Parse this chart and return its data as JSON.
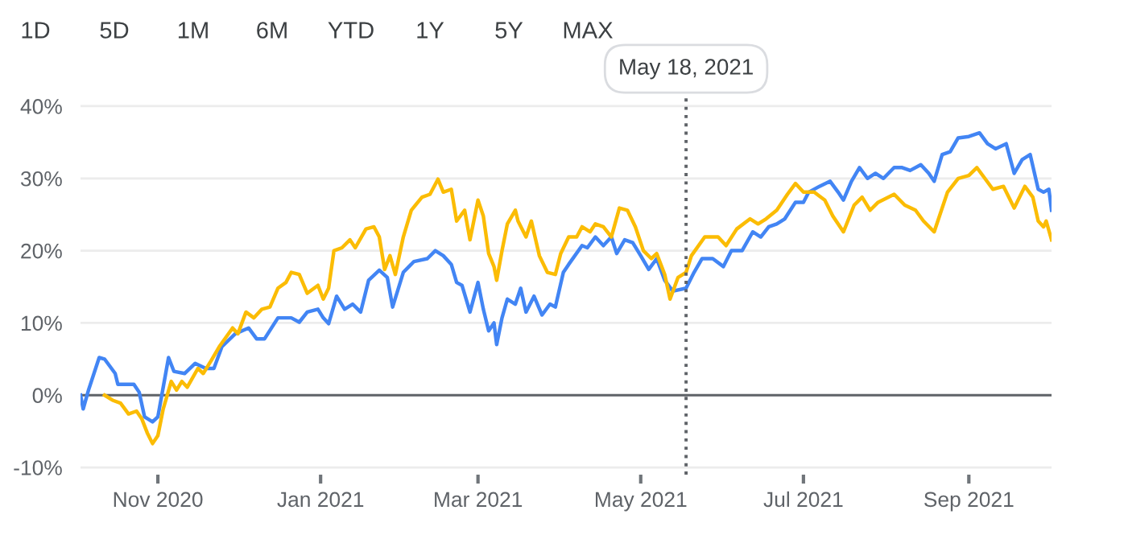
{
  "chart_data": {
    "type": "line",
    "annotations": [
      "1D",
      "5D",
      "1M",
      "6M",
      "YTD",
      "1Y",
      "5Y",
      "MAX"
    ],
    "xlim": [
      "2020-10-03",
      "2021-10-02"
    ],
    "xticks": [
      {
        "value": "2020-11-01",
        "label": "Nov 2020"
      },
      {
        "value": "2021-01-01",
        "label": "Jan 2021"
      },
      {
        "value": "2021-03-01",
        "label": "Mar 2021"
      },
      {
        "value": "2021-05-01",
        "label": "May 2021"
      },
      {
        "value": "2021-07-01",
        "label": "Jul 2021"
      },
      {
        "value": "2021-09-01",
        "label": "Sep 2021"
      }
    ],
    "ylim": [
      -11,
      42
    ],
    "yticks": [
      {
        "value": -10,
        "label": "-10%"
      },
      {
        "value": 0,
        "label": "0%"
      },
      {
        "value": 10,
        "label": "10%"
      },
      {
        "value": 20,
        "label": "20%"
      },
      {
        "value": 30,
        "label": "30%"
      },
      {
        "value": 40,
        "label": "40%"
      }
    ],
    "grid": "y",
    "legend": false,
    "marker": "none",
    "line_style": "solid",
    "ref_lines": [
      {
        "axis": "y",
        "value": 0,
        "color": "#5f6368",
        "line_style": "solid"
      },
      {
        "axis": "x",
        "value": "2021-05-18",
        "label": "May 18, 2021",
        "color": "#5f6368",
        "line_style": "dotted"
      }
    ],
    "series": [
      {
        "color": "#4285f4",
        "x": [
          "2020-10-03",
          "2020-10-04",
          "2020-10-06",
          "2020-10-10",
          "2020-10-12",
          "2020-10-16",
          "2020-10-17",
          "2020-10-23",
          "2020-10-25",
          "2020-10-27",
          "2020-10-30",
          "2020-11-01",
          "2020-11-05",
          "2020-11-07",
          "2020-11-11",
          "2020-11-15",
          "2020-11-19",
          "2020-11-22",
          "2020-11-25",
          "2020-11-30",
          "2020-12-05",
          "2020-12-08",
          "2020-12-11",
          "2020-12-16",
          "2020-12-21",
          "2020-12-24",
          "2020-12-27",
          "2020-12-31",
          "2021-01-02",
          "2021-01-04",
          "2021-01-07",
          "2021-01-10",
          "2021-01-13",
          "2021-01-16",
          "2021-01-19",
          "2021-01-23",
          "2021-01-26",
          "2021-01-28",
          "2021-02-01",
          "2021-02-05",
          "2021-02-10",
          "2021-02-13",
          "2021-02-16",
          "2021-02-19",
          "2021-02-21",
          "2021-02-23",
          "2021-02-26",
          "2021-03-01",
          "2021-03-03",
          "2021-03-05",
          "2021-03-07",
          "2021-03-08",
          "2021-03-10",
          "2021-03-12",
          "2021-03-15",
          "2021-03-17",
          "2021-03-19",
          "2021-03-22",
          "2021-03-25",
          "2021-03-28",
          "2021-03-30",
          "2021-04-02",
          "2021-04-04",
          "2021-04-09",
          "2021-04-11",
          "2021-04-14",
          "2021-04-17",
          "2021-04-20",
          "2021-04-22",
          "2021-04-25",
          "2021-04-28",
          "2021-05-01",
          "2021-05-04",
          "2021-05-07",
          "2021-05-10",
          "2021-05-13",
          "2021-05-18",
          "2021-05-21",
          "2021-05-24",
          "2021-05-28",
          "2021-06-01",
          "2021-06-04",
          "2021-06-08",
          "2021-06-12",
          "2021-06-15",
          "2021-06-18",
          "2021-06-21",
          "2021-06-24",
          "2021-06-28",
          "2021-07-01",
          "2021-07-03",
          "2021-07-07",
          "2021-07-11",
          "2021-07-14",
          "2021-07-16",
          "2021-07-19",
          "2021-07-22",
          "2021-07-25",
          "2021-07-28",
          "2021-07-31",
          "2021-08-04",
          "2021-08-07",
          "2021-08-10",
          "2021-08-14",
          "2021-08-17",
          "2021-08-19",
          "2021-08-22",
          "2021-08-25",
          "2021-08-28",
          "2021-09-01",
          "2021-09-05",
          "2021-09-08",
          "2021-09-11",
          "2021-09-15",
          "2021-09-18",
          "2021-09-21",
          "2021-09-24",
          "2021-09-27",
          "2021-09-29",
          "2021-10-01",
          "2021-10-02"
        ],
        "values": [
          0,
          -1.9,
          0.7,
          5.2,
          5.0,
          3.0,
          1.5,
          1.5,
          0.4,
          -3.0,
          -3.7,
          -3.0,
          5.2,
          3.3,
          3.0,
          4.4,
          3.7,
          3.7,
          6.7,
          8.5,
          9.3,
          7.8,
          7.8,
          10.7,
          10.7,
          10.1,
          11.5,
          11.9,
          10.7,
          9.9,
          13.7,
          11.9,
          12.6,
          11.5,
          15.9,
          17.3,
          16.3,
          12.2,
          17.0,
          18.5,
          18.9,
          20.0,
          19.3,
          18.1,
          15.6,
          15.2,
          11.5,
          15.6,
          11.9,
          8.9,
          10.0,
          7.0,
          10.7,
          13.3,
          12.6,
          14.8,
          11.5,
          13.7,
          11.1,
          12.6,
          12.2,
          17.0,
          18.1,
          20.7,
          20.4,
          21.9,
          20.7,
          21.9,
          19.6,
          21.5,
          21.1,
          19.3,
          17.4,
          18.9,
          15.9,
          14.4,
          14.8,
          17.0,
          18.9,
          18.9,
          17.8,
          20.0,
          20.0,
          22.6,
          21.9,
          23.3,
          23.7,
          24.4,
          26.7,
          26.7,
          28.1,
          28.9,
          29.6,
          28.1,
          27.0,
          29.6,
          31.5,
          30.0,
          30.7,
          30.0,
          31.5,
          31.5,
          31.1,
          31.9,
          30.7,
          29.6,
          33.3,
          33.7,
          35.6,
          35.8,
          36.3,
          34.8,
          34.1,
          34.8,
          30.7,
          32.6,
          33.3,
          28.5,
          28.1,
          28.5,
          25.6
        ]
      },
      {
        "color": "#fbbc04",
        "x": [
          "2020-10-12",
          "2020-10-15",
          "2020-10-18",
          "2020-10-21",
          "2020-10-24",
          "2020-10-26",
          "2020-10-28",
          "2020-10-30",
          "2020-11-01",
          "2020-11-03",
          "2020-11-06",
          "2020-11-08",
          "2020-11-10",
          "2020-11-12",
          "2020-11-16",
          "2020-11-18",
          "2020-11-21",
          "2020-11-24",
          "2020-11-29",
          "2020-12-01",
          "2020-12-04",
          "2020-12-07",
          "2020-12-10",
          "2020-12-13",
          "2020-12-16",
          "2020-12-19",
          "2020-12-21",
          "2020-12-24",
          "2020-12-27",
          "2020-12-31",
          "2021-01-02",
          "2021-01-04",
          "2021-01-06",
          "2021-01-09",
          "2021-01-12",
          "2021-01-14",
          "2021-01-18",
          "2021-01-21",
          "2021-01-23",
          "2021-01-25",
          "2021-01-27",
          "2021-01-29",
          "2021-02-01",
          "2021-02-04",
          "2021-02-08",
          "2021-02-11",
          "2021-02-14",
          "2021-02-16",
          "2021-02-19",
          "2021-02-21",
          "2021-02-24",
          "2021-02-26",
          "2021-03-01",
          "2021-03-03",
          "2021-03-05",
          "2021-03-07",
          "2021-03-08",
          "2021-03-10",
          "2021-03-12",
          "2021-03-15",
          "2021-03-16",
          "2021-03-19",
          "2021-03-21",
          "2021-03-24",
          "2021-03-27",
          "2021-03-30",
          "2021-04-01",
          "2021-04-04",
          "2021-04-07",
          "2021-04-09",
          "2021-04-12",
          "2021-04-14",
          "2021-04-17",
          "2021-04-20",
          "2021-04-23",
          "2021-04-26",
          "2021-04-29",
          "2021-05-02",
          "2021-05-05",
          "2021-05-07",
          "2021-05-10",
          "2021-05-12",
          "2021-05-15",
          "2021-05-18",
          "2021-05-20",
          "2021-05-25",
          "2021-05-30",
          "2021-06-02",
          "2021-06-06",
          "2021-06-11",
          "2021-06-14",
          "2021-06-17",
          "2021-06-21",
          "2021-06-25",
          "2021-06-28",
          "2021-07-01",
          "2021-07-05",
          "2021-07-09",
          "2021-07-12",
          "2021-07-16",
          "2021-07-20",
          "2021-07-23",
          "2021-07-26",
          "2021-07-29",
          "2021-08-04",
          "2021-08-08",
          "2021-08-12",
          "2021-08-15",
          "2021-08-19",
          "2021-08-24",
          "2021-08-28",
          "2021-09-01",
          "2021-09-04",
          "2021-09-07",
          "2021-09-10",
          "2021-09-14",
          "2021-09-18",
          "2021-09-22",
          "2021-09-25",
          "2021-09-27",
          "2021-09-29",
          "2021-09-30",
          "2021-10-02"
        ],
        "values": [
          0,
          -0.7,
          -1.1,
          -2.6,
          -2.2,
          -3.3,
          -5.2,
          -6.7,
          -5.6,
          -1.9,
          1.9,
          0.7,
          1.9,
          1.1,
          3.7,
          3.0,
          4.8,
          6.7,
          9.3,
          8.5,
          11.5,
          10.7,
          11.9,
          12.2,
          14.8,
          15.6,
          17.0,
          16.7,
          14.1,
          15.2,
          13.3,
          14.8,
          20.0,
          20.4,
          21.5,
          20.4,
          23.0,
          23.3,
          21.9,
          17.4,
          19.3,
          16.7,
          21.9,
          25.6,
          27.4,
          27.8,
          29.9,
          28.1,
          28.5,
          24.1,
          25.6,
          21.5,
          27.0,
          24.8,
          19.6,
          17.8,
          15.9,
          20.0,
          23.7,
          25.6,
          24.1,
          21.9,
          24.1,
          19.3,
          17.0,
          16.7,
          19.6,
          21.9,
          21.9,
          23.3,
          22.6,
          23.7,
          23.3,
          21.9,
          25.9,
          25.6,
          23.3,
          20.0,
          18.9,
          19.6,
          16.7,
          13.3,
          16.3,
          17.0,
          19.3,
          21.9,
          21.9,
          20.7,
          23.0,
          24.4,
          23.7,
          24.4,
          25.6,
          27.8,
          29.3,
          28.1,
          28.1,
          27.0,
          24.8,
          22.6,
          26.3,
          27.4,
          25.6,
          26.7,
          27.8,
          26.3,
          25.6,
          24.1,
          22.6,
          28.1,
          30.0,
          30.4,
          31.5,
          30.0,
          28.5,
          28.9,
          25.9,
          28.9,
          27.4,
          24.1,
          23.3,
          24.1,
          21.5
        ]
      }
    ]
  }
}
